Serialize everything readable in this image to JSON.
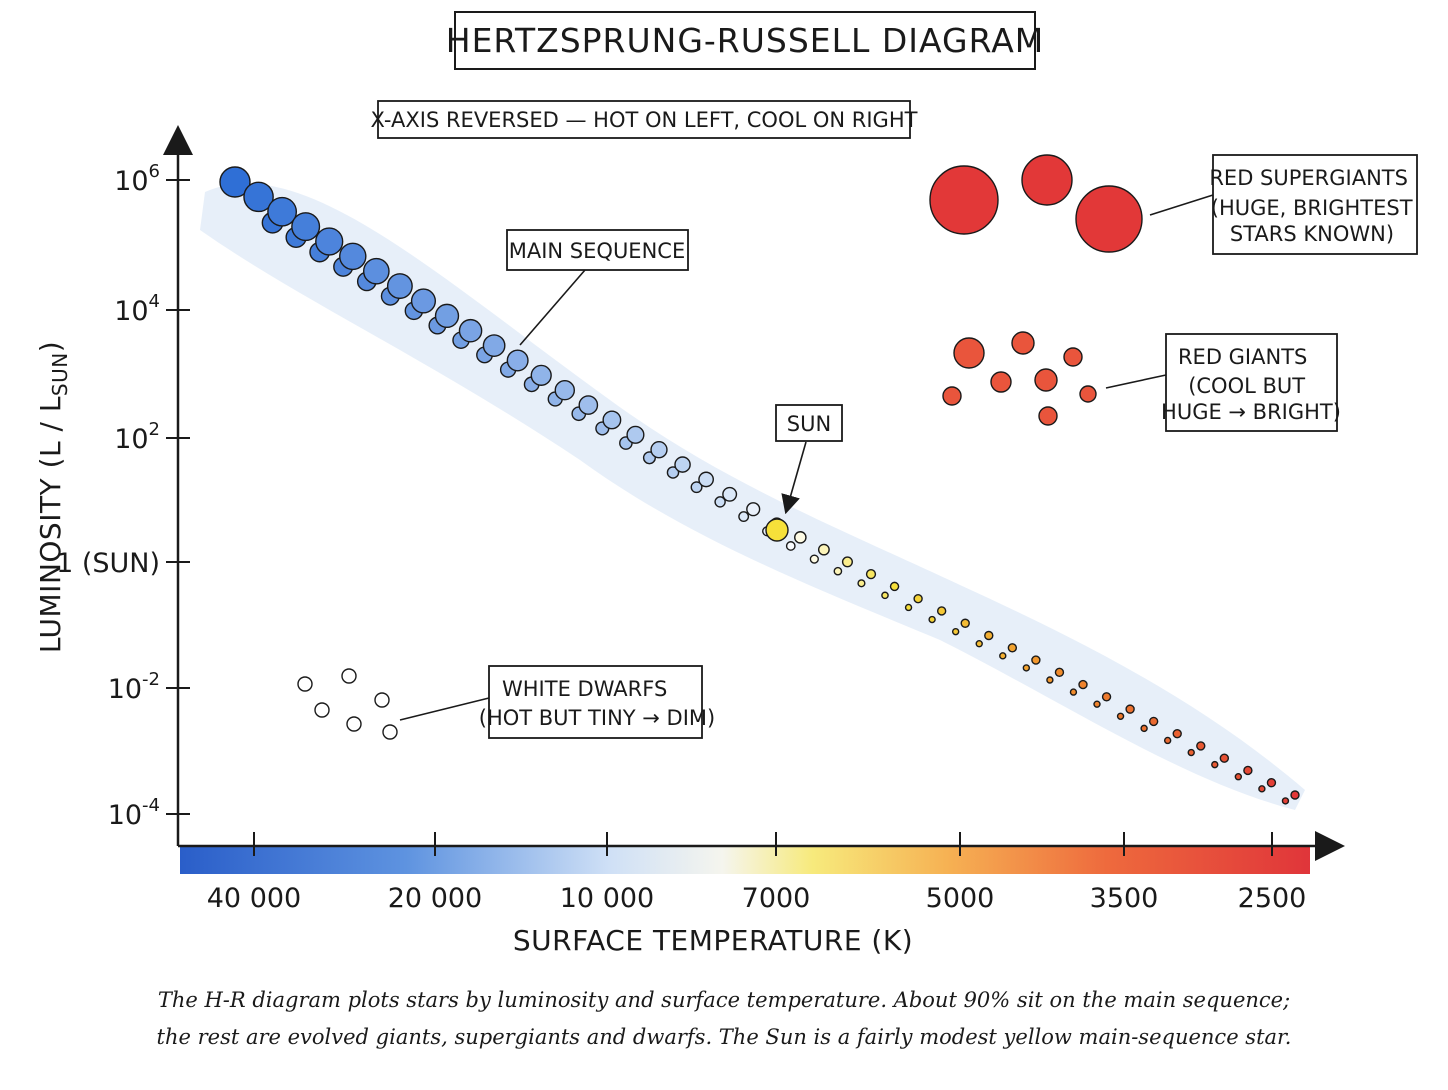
{
  "title": "HERTZSPRUNG-RUSSELL DIAGRAM",
  "note": "X-AXIS REVERSED — HOT ON LEFT, COOL ON RIGHT",
  "y_axis": {
    "title": "LUMINOSITY (L / L",
    "title_sub": "SUN",
    "title_end": ")",
    "ticks": [
      {
        "base": "10",
        "exp": "6",
        "value": 1000000
      },
      {
        "base": "10",
        "exp": "4",
        "value": 10000
      },
      {
        "base": "10",
        "exp": "2",
        "value": 100
      },
      {
        "base": "1 (SUN)",
        "exp": "",
        "value": 1
      },
      {
        "base": "10",
        "exp": "-2",
        "value": 0.01
      },
      {
        "base": "10",
        "exp": "-4",
        "value": 0.0001
      }
    ]
  },
  "x_axis": {
    "title": "SURFACE TEMPERATURE (K)",
    "ticks": [
      "40 000",
      "20 000",
      "10 000",
      "7000",
      "5000",
      "3500",
      "2500"
    ]
  },
  "labels": {
    "main_sequence": "MAIN SEQUENCE",
    "sun": "SUN",
    "red_supergiants": [
      "RED SUPERGIANTS",
      "(HUGE, BRIGHTEST",
      "STARS KNOWN)"
    ],
    "red_giants": [
      "RED GIANTS",
      "(COOL BUT",
      "HUGE → BRIGHT)"
    ],
    "white_dwarfs": [
      "WHITE DWARFS",
      "(HOT BUT TINY → DIM)"
    ]
  },
  "caption": [
    "The H-R diagram plots stars by luminosity and surface temperature. About 90% sit on the main sequence;",
    "the rest are evolved giants, supergiants and dwarfs. The Sun is a fairly modest yellow main-sequence star."
  ],
  "colors": {
    "hot_blue": "#2f6fd6",
    "white": "#ffffff",
    "sun_yellow": "#f6e03a",
    "orange": "#f08a2c",
    "red": "#e23838",
    "band": "#dfe9f7"
  }
}
